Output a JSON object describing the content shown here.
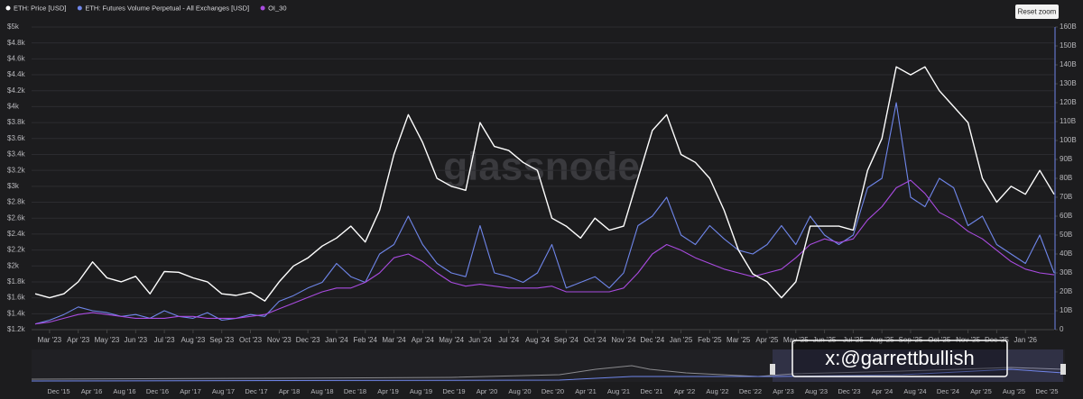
{
  "chart_data": {
    "type": "line",
    "categories": [
      null,
      "Mar '23",
      null,
      "Apr '23",
      null,
      "May '23",
      null,
      "Jun '23",
      null,
      "Jul '23",
      null,
      "Aug '23",
      null,
      "Sep '23",
      null,
      "Oct '23",
      null,
      "Nov '23",
      null,
      "Dec '23",
      null,
      "Jan '24",
      null,
      "Feb '24",
      null,
      "Mar '24",
      null,
      "Apr '24",
      null,
      "May '24",
      null,
      "Jun '24",
      null,
      "Jul '24",
      null,
      "Aug '24",
      null,
      "Sep '24",
      null,
      "Oct '24",
      null,
      "Nov '24",
      null,
      "Dec '24",
      null,
      "Jan '25",
      null,
      "Feb '25",
      null,
      "Mar '25",
      null,
      "Apr '25",
      null,
      "May '25",
      null,
      "Jun '25",
      null,
      "Jul '25",
      null,
      "Aug '25",
      null,
      "Sep '25",
      null,
      "Oct '25",
      null,
      "Nov '25",
      null,
      "Dec '25",
      null,
      "Jan '26",
      null,
      null
    ],
    "series": [
      {
        "name": "ETH: Price [USD]",
        "color": "#ffffff",
        "values": [
          1650,
          1600,
          1650,
          1800,
          2050,
          1850,
          1800,
          1870,
          1650,
          1930,
          1920,
          1850,
          1800,
          1650,
          1630,
          1670,
          1560,
          1800,
          2000,
          2100,
          2250,
          2350,
          2500,
          2300,
          2700,
          3400,
          3900,
          3550,
          3100,
          3000,
          2950,
          3800,
          3500,
          3450,
          3300,
          3200,
          2600,
          2500,
          2350,
          2600,
          2450,
          2500,
          3100,
          3700,
          3900,
          3400,
          3300,
          3100,
          2700,
          2200,
          1900,
          1800,
          1600,
          1800,
          2500,
          2500,
          2500,
          2450,
          3200,
          3600,
          4500,
          4400,
          4500,
          4200,
          4000,
          3800,
          3100,
          2800,
          3000,
          2900,
          3200,
          2900
        ]
      },
      {
        "name": "ETH: Futures Volume Perpetual - All Exchanges [USD]",
        "color": "#6f86ea",
        "axis": "y2",
        "values": [
          3000000000.0,
          5000000000.0,
          8000000000.0,
          12000000000.0,
          10000000000.0,
          9000000000.0,
          7000000000.0,
          8000000000.0,
          6000000000.0,
          10000000000.0,
          7000000000.0,
          6000000000.0,
          9000000000.0,
          5000000000.0,
          6000000000.0,
          8000000000.0,
          7000000000.0,
          15000000000.0,
          18000000000.0,
          22000000000.0,
          25000000000.0,
          35000000000.0,
          28000000000.0,
          25000000000.0,
          40000000000.0,
          45000000000.0,
          60000000000.0,
          45000000000.0,
          35000000000.0,
          30000000000.0,
          28000000000.0,
          55000000000.0,
          30000000000.0,
          28000000000.0,
          25000000000.0,
          30000000000.0,
          45000000000.0,
          22000000000.0,
          25000000000.0,
          28000000000.0,
          22000000000.0,
          30000000000.0,
          55000000000.0,
          60000000000.0,
          70000000000.0,
          50000000000.0,
          45000000000.0,
          55000000000.0,
          48000000000.0,
          42000000000.0,
          40000000000.0,
          45000000000.0,
          55000000000.0,
          45000000000.0,
          60000000000.0,
          50000000000.0,
          45000000000.0,
          50000000000.0,
          75000000000.0,
          80000000000.0,
          120000000000.0,
          70000000000.0,
          65000000000.0,
          80000000000.0,
          75000000000.0,
          55000000000.0,
          60000000000.0,
          45000000000.0,
          40000000000.0,
          35000000000.0,
          50000000000.0,
          30000000000.0
        ]
      },
      {
        "name": "OI_30",
        "color": "#a94be0",
        "axis": "y2",
        "values": [
          3000000000.0,
          4000000000.0,
          6000000000.0,
          8000000000.0,
          9000000000.0,
          8000000000.0,
          7000000000.0,
          6000000000.0,
          6000000000.0,
          6000000000.0,
          7000000000.0,
          7000000000.0,
          6000000000.0,
          6000000000.0,
          6000000000.0,
          7000000000.0,
          8000000000.0,
          11000000000.0,
          14000000000.0,
          17000000000.0,
          20000000000.0,
          22000000000.0,
          22000000000.0,
          25000000000.0,
          30000000000.0,
          38000000000.0,
          40000000000.0,
          36000000000.0,
          30000000000.0,
          25000000000.0,
          23000000000.0,
          24000000000.0,
          23000000000.0,
          22000000000.0,
          22000000000.0,
          22000000000.0,
          23000000000.0,
          20000000000.0,
          20000000000.0,
          20000000000.0,
          20000000000.0,
          22000000000.0,
          30000000000.0,
          40000000000.0,
          45000000000.0,
          42000000000.0,
          38000000000.0,
          35000000000.0,
          32000000000.0,
          30000000000.0,
          28000000000.0,
          30000000000.0,
          32000000000.0,
          38000000000.0,
          45000000000.0,
          48000000000.0,
          46000000000.0,
          48000000000.0,
          58000000000.0,
          65000000000.0,
          75000000000.0,
          79000000000.0,
          72000000000.0,
          62000000000.0,
          58000000000.0,
          52000000000.0,
          48000000000.0,
          42000000000.0,
          36000000000.0,
          32000000000.0,
          30000000000.0,
          29000000000.0
        ]
      }
    ],
    "ylim": [
      1200,
      5000
    ],
    "yticks": [
      {
        "value": 1200,
        "label": "$1.2k"
      },
      {
        "value": 1400,
        "label": "$1.4k"
      },
      {
        "value": 1600,
        "label": "$1.6k"
      },
      {
        "value": 1800,
        "label": "$1.8k"
      },
      {
        "value": 2000,
        "label": "$2k"
      },
      {
        "value": 2200,
        "label": "$2.2k"
      },
      {
        "value": 2400,
        "label": "$2.4k"
      },
      {
        "value": 2600,
        "label": "$2.6k"
      },
      {
        "value": 2800,
        "label": "$2.8k"
      },
      {
        "value": 3000,
        "label": "$3k"
      },
      {
        "value": 3200,
        "label": "$3.2k"
      },
      {
        "value": 3400,
        "label": "$3.4k"
      },
      {
        "value": 3600,
        "label": "$3.6k"
      },
      {
        "value": 3800,
        "label": "$3.8k"
      },
      {
        "value": 4000,
        "label": "$4k"
      },
      {
        "value": 4200,
        "label": "$4.2k"
      },
      {
        "value": 4400,
        "label": "$4.4k"
      },
      {
        "value": 4600,
        "label": "$4.6k"
      },
      {
        "value": 4800,
        "label": "$4.8k"
      },
      {
        "value": 5000,
        "label": "$5k"
      }
    ],
    "y2lim": [
      0,
      160000000000.0
    ],
    "y2ticks": [
      0,
      {
        "value": 10000000000.0,
        "label": "10B"
      },
      {
        "value": 20000000000.0,
        "label": "20B"
      },
      {
        "value": 30000000000.0,
        "label": "30B"
      },
      {
        "value": 40000000000.0,
        "label": "40B"
      },
      {
        "value": 50000000000.0,
        "label": "50B"
      },
      {
        "value": 60000000000.0,
        "label": "60B"
      },
      {
        "value": 70000000000.0,
        "label": "70B"
      },
      {
        "value": 80000000000.0,
        "label": "80B"
      },
      {
        "value": 90000000000.0,
        "label": "90B"
      },
      {
        "value": 100000000000.0,
        "label": "100B"
      },
      {
        "value": 110000000000.0,
        "label": "110B"
      },
      {
        "value": 120000000000.0,
        "label": "120B"
      },
      {
        "value": 130000000000.0,
        "label": "130B"
      },
      {
        "value": 140000000000.0,
        "label": "140B"
      },
      {
        "value": 150000000000.0,
        "label": "150B"
      },
      {
        "value": 160000000000.0,
        "label": "160B"
      }
    ],
    "grid": true,
    "legend": "top-left",
    "watermark": "glassnode",
    "reset_button": "Reset zoom",
    "annotation": "x:@garrettbullish",
    "navigator_labels": [
      "Dec '15",
      "Apr '16",
      "Aug '16",
      "Dec '16",
      "Apr '17",
      "Aug '17",
      "Dec '17",
      "Apr '18",
      "Aug '18",
      "Dec '18",
      "Apr '19",
      "Aug '19",
      "Dec '19",
      "Apr '20",
      "Aug '20",
      "Dec '20",
      "Apr '21",
      "Aug '21",
      "Dec '21",
      "Apr '22",
      "Aug '22",
      "Dec '22",
      "Apr '23",
      "Aug '23",
      "Dec '23",
      "Apr '24",
      "Aug '24",
      "Dec '24",
      "Apr '25",
      "Aug '25",
      "Dec '25"
    ]
  }
}
